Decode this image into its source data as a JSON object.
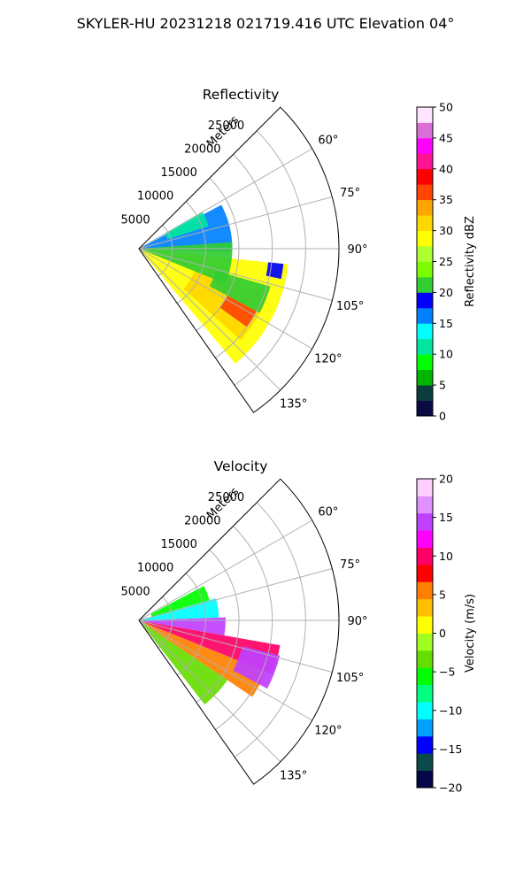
{
  "figure": {
    "suptitle": "SKYLER-HU  20231218  021719.416 UTC Elevation 04°"
  },
  "colors": {
    "grid": "#b0b0b0",
    "frame": "#000000",
    "reflectivity_scale": [
      "#0a0a46",
      "#0c3c3c",
      "#00b400",
      "#00ff00",
      "#00e6a0",
      "#00ffff",
      "#0080ff",
      "#0000ff",
      "#32cd32",
      "#7cfc00",
      "#adff2f",
      "#ffff00",
      "#ffd700",
      "#ffa500",
      "#ff4500",
      "#ff0000",
      "#ff1493",
      "#ff00ff",
      "#da70d6",
      "#ffe4ff"
    ],
    "velocity_scale": [
      "#06064a",
      "#0a4a4a",
      "#0000ff",
      "#00a0ff",
      "#00ffff",
      "#00ff80",
      "#00ff00",
      "#66dd00",
      "#a0ff20",
      "#ffff00",
      "#ffc000",
      "#ff8000",
      "#ff0000",
      "#ff0066",
      "#ff00ff",
      "#c040ff",
      "#e090ff",
      "#ffd0ff"
    ]
  },
  "chart_data": [
    {
      "type": "heatmap",
      "id": "reflectivity",
      "title": "Reflectivity",
      "radial_label": "Meters",
      "radial_ticks": [
        "5000",
        "10000",
        "15000",
        "20000",
        "25000"
      ],
      "radial_values": [
        5000,
        10000,
        15000,
        20000,
        25000
      ],
      "rlim": [
        0,
        30000
      ],
      "azimuth_range_deg": [
        45,
        145
      ],
      "angle_ticks": [
        "60°",
        "75°",
        "90°",
        "105°",
        "120°",
        "135°"
      ],
      "angle_values": [
        60,
        75,
        90,
        105,
        120,
        135
      ],
      "grid": true,
      "colorbar": {
        "label": "Reflectivity dBZ",
        "range": [
          0,
          50
        ],
        "ticks": [
          "0",
          "5",
          "10",
          "15",
          "20",
          "25",
          "30",
          "35",
          "40",
          "45",
          "50"
        ],
        "tick_values": [
          0,
          5,
          10,
          15,
          20,
          25,
          30,
          35,
          40,
          45,
          50
        ]
      },
      "echo_regions": [
        {
          "az": [
            96,
            140
          ],
          "r": [
            0,
            22500
          ],
          "value": 28
        },
        {
          "az": [
            110,
            132
          ],
          "r": [
            9000,
            20500
          ],
          "value": 31
        },
        {
          "az": [
            118,
            126
          ],
          "r": [
            15000,
            20000
          ],
          "value": 36
        },
        {
          "az": [
            62,
            92
          ],
          "r": [
            0,
            14000
          ],
          "value": 16
        },
        {
          "az": [
            86,
            112
          ],
          "r": [
            0,
            14000
          ],
          "value": 20
        },
        {
          "az": [
            106,
            118
          ],
          "r": [
            12000,
            20500
          ],
          "value": 21
        },
        {
          "az": [
            96,
            102
          ],
          "r": [
            19500,
            21800
          ],
          "value": 19
        },
        {
          "az": [
            60,
            72
          ],
          "r": [
            4500,
            11000
          ],
          "value": 10
        }
      ]
    },
    {
      "type": "heatmap",
      "id": "velocity",
      "title": "Velocity",
      "radial_label": "Meters",
      "radial_ticks": [
        "5000",
        "10000",
        "15000",
        "20000",
        "25000"
      ],
      "radial_values": [
        5000,
        10000,
        15000,
        20000,
        25000
      ],
      "rlim": [
        0,
        30000
      ],
      "azimuth_range_deg": [
        45,
        145
      ],
      "angle_ticks": [
        "60°",
        "75°",
        "90°",
        "105°",
        "120°",
        "135°"
      ],
      "angle_values": [
        60,
        75,
        90,
        105,
        120,
        135
      ],
      "grid": true,
      "colorbar": {
        "label": "Velocity (m/s)",
        "range": [
          -20,
          20
        ],
        "ticks": [
          "−20",
          "−15",
          "−10",
          "−5",
          "0",
          "5",
          "10",
          "15",
          "20"
        ],
        "tick_values": [
          -20,
          -15,
          -10,
          -5,
          0,
          5,
          10,
          15,
          20
        ]
      },
      "echo_regions": [
        {
          "az": [
            124,
            142
          ],
          "r": [
            0,
            16000
          ],
          "value": -4
        },
        {
          "az": [
            112,
            124
          ],
          "r": [
            0,
            20500
          ],
          "value": 5
        },
        {
          "az": [
            100,
            112
          ],
          "r": [
            0,
            21500
          ],
          "value": 10
        },
        {
          "az": [
            88,
            100
          ],
          "r": [
            0,
            13000
          ],
          "value": 14
        },
        {
          "az": [
            74,
            88
          ],
          "r": [
            0,
            12000
          ],
          "value": -11
        },
        {
          "az": [
            62,
            74
          ],
          "r": [
            2000,
            11000
          ],
          "value": -5
        },
        {
          "az": [
            104,
            118
          ],
          "r": [
            16000,
            21800
          ],
          "value": 15
        }
      ]
    }
  ]
}
